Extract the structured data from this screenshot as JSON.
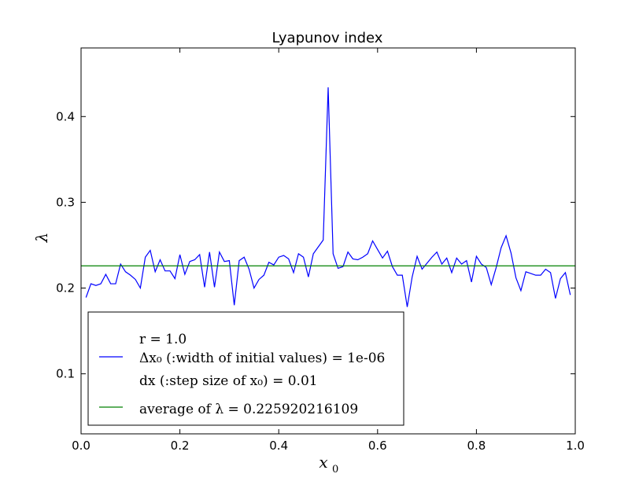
{
  "chart_data": {
    "type": "line",
    "title": "Lyapunov index",
    "xlabel": "x",
    "xlabel_sub": "0",
    "ylabel": "λ",
    "xlim": [
      0.0,
      1.0
    ],
    "ylim": [
      0.03,
      0.48
    ],
    "xticks": [
      "0.0",
      "0.2",
      "0.4",
      "0.6",
      "0.8",
      "1.0"
    ],
    "yticks": [
      "0.1",
      "0.2",
      "0.3",
      "0.4"
    ],
    "grid": false,
    "legend_position": "lower-left",
    "legend": {
      "line1": "r = 1.0",
      "line2": "Δx₀ (:width of initial values) = 1e-06",
      "line3": "dx (:step size of x₀) = 0.01",
      "line4": "average of λ = 0.225920216109"
    },
    "series": [
      {
        "name": "Δx₀ (:width of initial values) = 1e-06",
        "color": "#0000ff",
        "x": [
          0.01,
          0.02,
          0.03,
          0.04,
          0.05,
          0.06,
          0.07,
          0.08,
          0.09,
          0.1,
          0.11,
          0.12,
          0.13,
          0.14,
          0.15,
          0.16,
          0.17,
          0.18,
          0.19,
          0.2,
          0.21,
          0.22,
          0.23,
          0.24,
          0.25,
          0.26,
          0.27,
          0.28,
          0.29,
          0.3,
          0.31,
          0.32,
          0.33,
          0.34,
          0.35,
          0.36,
          0.37,
          0.38,
          0.39,
          0.4,
          0.41,
          0.42,
          0.43,
          0.44,
          0.45,
          0.46,
          0.47,
          0.48,
          0.49,
          0.5,
          0.51,
          0.52,
          0.53,
          0.54,
          0.55,
          0.56,
          0.57,
          0.58,
          0.59,
          0.6,
          0.61,
          0.62,
          0.63,
          0.64,
          0.65,
          0.66,
          0.67,
          0.68,
          0.69,
          0.7,
          0.71,
          0.72,
          0.73,
          0.74,
          0.75,
          0.76,
          0.77,
          0.78,
          0.79,
          0.8,
          0.81,
          0.82,
          0.83,
          0.84,
          0.85,
          0.86,
          0.87,
          0.88,
          0.89,
          0.9,
          0.91,
          0.92,
          0.93,
          0.94,
          0.95,
          0.96,
          0.97,
          0.98,
          0.99
        ],
        "values": [
          0.189,
          0.205,
          0.203,
          0.205,
          0.216,
          0.205,
          0.205,
          0.228,
          0.219,
          0.215,
          0.21,
          0.2,
          0.236,
          0.244,
          0.219,
          0.233,
          0.22,
          0.22,
          0.211,
          0.239,
          0.216,
          0.231,
          0.233,
          0.239,
          0.201,
          0.242,
          0.201,
          0.242,
          0.231,
          0.232,
          0.18,
          0.232,
          0.236,
          0.222,
          0.2,
          0.21,
          0.215,
          0.23,
          0.227,
          0.236,
          0.238,
          0.234,
          0.218,
          0.24,
          0.236,
          0.213,
          0.24,
          0.248,
          0.256,
          0.434,
          0.24,
          0.223,
          0.225,
          0.242,
          0.234,
          0.233,
          0.236,
          0.24,
          0.255,
          0.245,
          0.235,
          0.243,
          0.225,
          0.215,
          0.215,
          0.178,
          0.213,
          0.237,
          0.222,
          0.229,
          0.236,
          0.242,
          0.228,
          0.235,
          0.218,
          0.235,
          0.228,
          0.232,
          0.207,
          0.237,
          0.228,
          0.224,
          0.204,
          0.224,
          0.247,
          0.261,
          0.241,
          0.212,
          0.197,
          0.219,
          0.217,
          0.215,
          0.215,
          0.222,
          0.218,
          0.188,
          0.211,
          0.218,
          0.192
        ]
      },
      {
        "name": "average of λ = 0.225920216109",
        "color": "#008000",
        "x": [
          0.0,
          1.0
        ],
        "values": [
          0.225920216109,
          0.225920216109
        ]
      }
    ]
  }
}
